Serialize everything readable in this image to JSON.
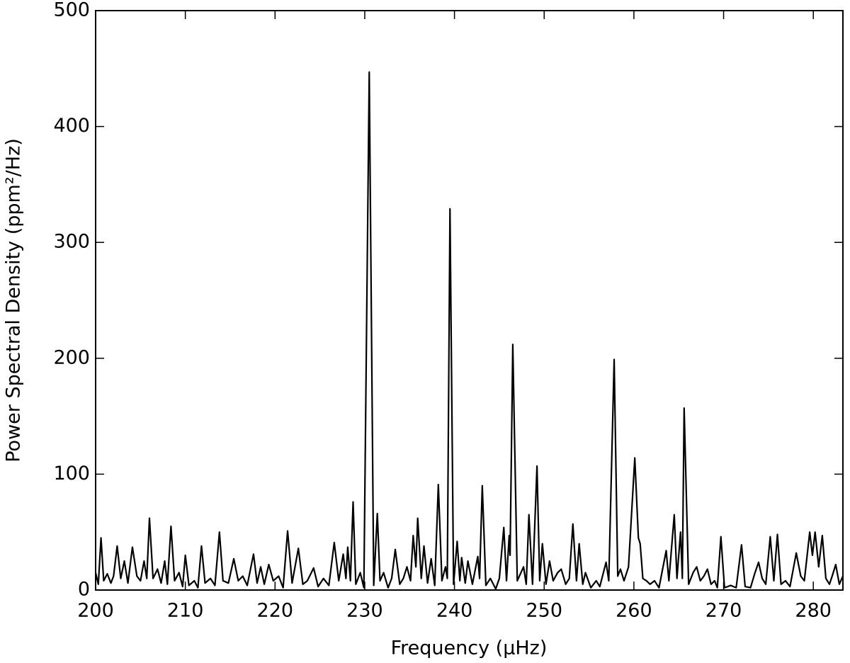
{
  "chart_data": {
    "type": "line",
    "xlabel": "Frequency (μHz)",
    "ylabel": "Power Spectral Density (ppm²/Hz)",
    "color": "#000000",
    "xlim": [
      200,
      283.3
    ],
    "ylim": [
      0,
      500
    ],
    "xticks": [
      200,
      210,
      220,
      230,
      240,
      250,
      260,
      270,
      280
    ],
    "yticks": [
      0,
      100,
      200,
      300,
      400,
      500
    ],
    "x": [
      200.0,
      200.3,
      200.6,
      200.9,
      201.3,
      201.7,
      202.0,
      202.4,
      202.8,
      203.2,
      203.6,
      204.1,
      204.6,
      205.0,
      205.4,
      205.7,
      206.0,
      206.4,
      206.9,
      207.3,
      207.7,
      208.0,
      208.4,
      208.8,
      209.3,
      209.7,
      210.0,
      210.4,
      211.0,
      211.4,
      211.8,
      212.2,
      212.8,
      213.3,
      213.8,
      214.2,
      214.8,
      215.4,
      215.9,
      216.4,
      216.9,
      217.6,
      218.0,
      218.4,
      218.8,
      219.3,
      219.8,
      220.4,
      220.9,
      221.4,
      221.9,
      222.6,
      223.1,
      223.6,
      224.3,
      224.8,
      225.4,
      226.0,
      226.6,
      227.1,
      227.6,
      227.9,
      228.1,
      228.4,
      228.7,
      229.0,
      229.5,
      229.9,
      230.5,
      231.0,
      231.4,
      231.7,
      232.1,
      232.6,
      233.0,
      233.4,
      233.9,
      234.3,
      234.7,
      235.1,
      235.4,
      235.7,
      235.9,
      236.3,
      236.6,
      237.0,
      237.4,
      237.8,
      238.2,
      238.6,
      239.0,
      239.2,
      239.5,
      239.9,
      240.3,
      240.6,
      240.8,
      241.2,
      241.5,
      242.0,
      242.6,
      242.8,
      243.1,
      243.5,
      244.0,
      244.6,
      245.0,
      245.5,
      245.8,
      246.1,
      246.2,
      246.5,
      247.0,
      247.7,
      248.0,
      248.3,
      248.7,
      249.2,
      249.5,
      249.8,
      250.2,
      250.6,
      251.0,
      251.5,
      251.9,
      252.4,
      252.8,
      253.2,
      253.6,
      253.9,
      254.3,
      254.6,
      255.2,
      255.8,
      256.2,
      256.9,
      257.2,
      257.8,
      258.2,
      258.5,
      258.9,
      259.4,
      260.1,
      260.5,
      260.7,
      261.0,
      261.4,
      261.8,
      262.3,
      262.8,
      263.6,
      263.9,
      264.5,
      264.8,
      265.2,
      265.4,
      265.6,
      266.1,
      266.6,
      267.0,
      267.4,
      267.8,
      268.2,
      268.6,
      269.0,
      269.3,
      269.7,
      270.1,
      270.8,
      271.4,
      272.0,
      272.4,
      273.0,
      273.5,
      273.9,
      274.3,
      274.7,
      275.2,
      275.6,
      276.0,
      276.4,
      276.9,
      277.4,
      278.1,
      278.6,
      279.0,
      279.6,
      279.9,
      280.2,
      280.6,
      281.0,
      281.4,
      281.8,
      282.1,
      282.5,
      282.9,
      283.3
    ],
    "values": [
      15,
      5,
      45,
      8,
      14,
      6,
      12,
      38,
      10,
      25,
      6,
      37,
      12,
      8,
      25,
      10,
      62,
      10,
      18,
      6,
      25,
      5,
      55,
      8,
      15,
      3,
      30,
      4,
      8,
      2,
      38,
      6,
      10,
      4,
      50,
      8,
      6,
      27,
      8,
      12,
      4,
      31,
      6,
      20,
      5,
      22,
      8,
      12,
      2,
      51,
      6,
      36,
      5,
      8,
      19,
      3,
      10,
      4,
      41,
      8,
      31,
      10,
      37,
      8,
      76,
      5,
      15,
      2,
      447,
      4,
      66,
      8,
      15,
      2,
      10,
      35,
      5,
      10,
      20,
      8,
      47,
      20,
      62,
      10,
      38,
      6,
      27,
      4,
      91,
      8,
      20,
      10,
      329,
      5,
      42,
      8,
      28,
      6,
      25,
      5,
      29,
      10,
      90,
      4,
      10,
      1,
      10,
      54,
      8,
      47,
      30,
      212,
      8,
      20,
      5,
      65,
      5,
      107,
      8,
      40,
      5,
      25,
      8,
      15,
      18,
      5,
      10,
      57,
      8,
      40,
      5,
      15,
      2,
      8,
      3,
      24,
      8,
      199,
      12,
      18,
      8,
      20,
      114,
      45,
      40,
      10,
      8,
      5,
      8,
      2,
      34,
      8,
      65,
      10,
      50,
      10,
      157,
      5,
      15,
      20,
      8,
      12,
      18,
      5,
      8,
      2,
      46,
      2,
      4,
      2,
      39,
      3,
      2,
      15,
      24,
      10,
      5,
      46,
      8,
      48,
      5,
      8,
      3,
      32,
      12,
      8,
      50,
      30,
      50,
      20,
      47,
      10,
      5,
      12,
      22,
      5,
      12
    ]
  }
}
